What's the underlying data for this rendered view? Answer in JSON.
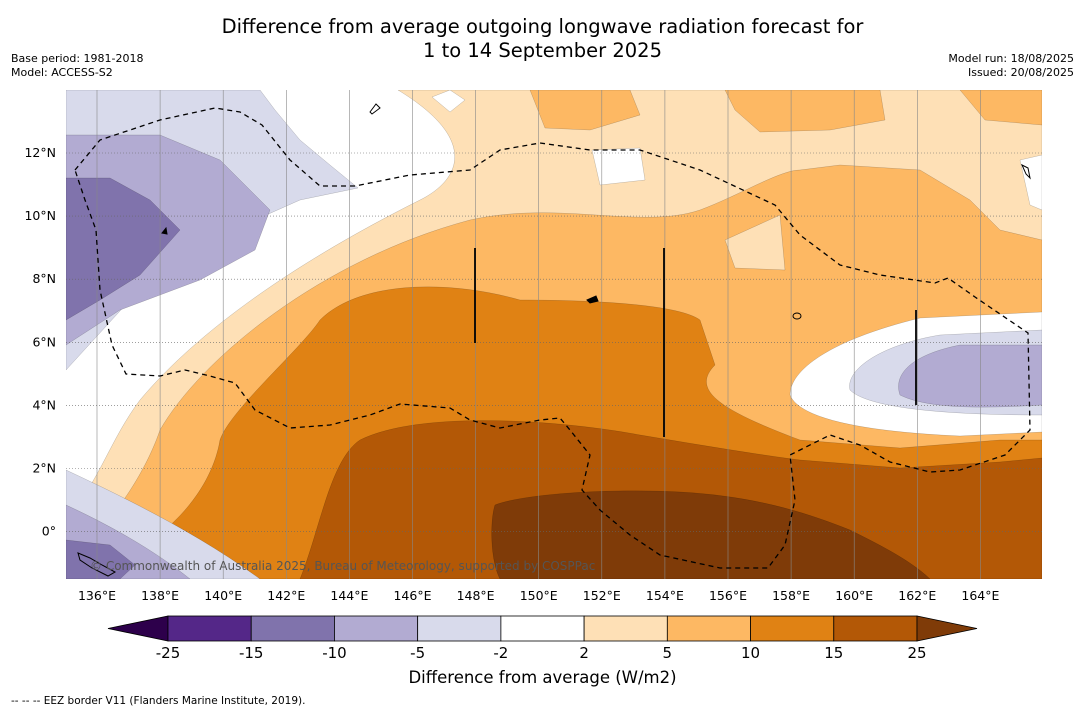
{
  "title_line1": "Difference from average outgoing longwave radiation forecast for",
  "title_line2": "1 to 14 September 2025",
  "meta_left": {
    "base_period": "Base period: 1981-2018",
    "model": "Model: ACCESS-S2"
  },
  "meta_right": {
    "model_run": "Model run: 18/08/2025",
    "issued": "Issued: 20/08/2025"
  },
  "map": {
    "lon_labels": [
      "136°E",
      "138°E",
      "140°E",
      "142°E",
      "144°E",
      "146°E",
      "148°E",
      "150°E",
      "152°E",
      "154°E",
      "156°E",
      "158°E",
      "160°E",
      "162°E",
      "164°E"
    ],
    "lat_labels": [
      "12°N",
      "10°N",
      "8°N",
      "6°N",
      "4°N",
      "2°N",
      "0°"
    ],
    "copyright": "© Commonwealth of Australia 2025, Bureau of Meteorology, supported by COSPPac",
    "border_name": "EEZ border V11"
  },
  "colorbar": {
    "ticks": [
      "-25",
      "-15",
      "-10",
      "-5",
      "-2",
      "2",
      "5",
      "10",
      "15",
      "25"
    ],
    "colors": {
      "under": "#2d004b",
      "c1": "#542788",
      "c2": "#8073ac",
      "c3": "#b2abd2",
      "c4": "#d8daeb",
      "c5": "#ffffff",
      "c6": "#fee0b6",
      "c7": "#fdb863",
      "c8": "#e08214",
      "c9": "#b35806",
      "over": "#7f3b08"
    },
    "label": "Difference from average (W/m2)"
  },
  "footnote": "--  --  -- EEZ border V11 (Flanders Marine Institute, 2019)."
}
